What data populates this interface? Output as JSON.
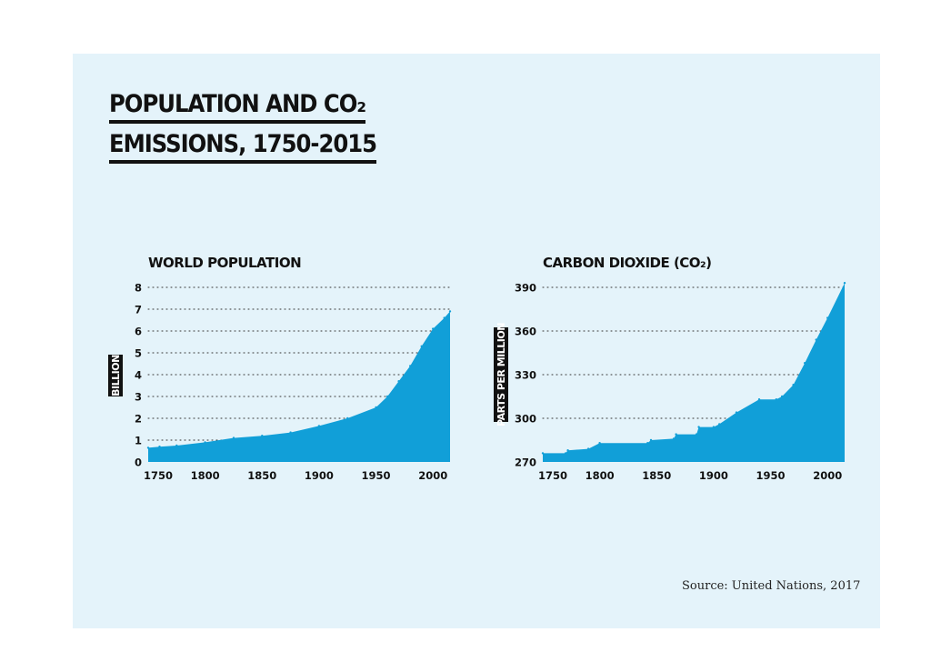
{
  "figure": {
    "title_line1": "POPULATION AND CO₂",
    "title_line2": "EMISSIONS, 1750-2015",
    "source": "Source: United Nations, 2017"
  },
  "colors": {
    "fill": "#119fd8",
    "background": "#e4f3fa",
    "text": "#111111"
  },
  "chart_data": [
    {
      "type": "area",
      "title": "WORLD POPULATION",
      "xlabel": "",
      "ylabel": "BILLION",
      "xlim": [
        1750,
        2015
      ],
      "ylim": [
        0,
        8
      ],
      "xticks": [
        1750,
        1800,
        1850,
        1900,
        1950,
        2000
      ],
      "xtick_labels": [
        "1750",
        "1800",
        "1850",
        "1900",
        "1950",
        "2000"
      ],
      "yticks": [
        0,
        1,
        2,
        3,
        4,
        5,
        6,
        7,
        8
      ],
      "ytick_labels": [
        "0",
        "1",
        "2",
        "3",
        "4",
        "5",
        "6",
        "7",
        "8"
      ],
      "grid": true,
      "x": [
        1750,
        1760,
        1775,
        1800,
        1825,
        1850,
        1875,
        1900,
        1925,
        1950,
        1960,
        1970,
        1980,
        1990,
        2000,
        2010,
        2015
      ],
      "values": [
        0.65,
        0.7,
        0.75,
        0.9,
        1.1,
        1.2,
        1.35,
        1.65,
        2.0,
        2.5,
        3.0,
        3.7,
        4.4,
        5.3,
        6.1,
        6.6,
        6.9
      ]
    },
    {
      "type": "area",
      "title": "CARBON DIOXIDE (CO₂)",
      "xlabel": "",
      "ylabel": "PARTS PER MILLION",
      "xlim": [
        1750,
        2015
      ],
      "ylim": [
        270,
        390
      ],
      "xticks": [
        1750,
        1800,
        1850,
        1900,
        1950,
        2000
      ],
      "xtick_labels": [
        "1750",
        "1800",
        "1850",
        "1900",
        "1950",
        "2000"
      ],
      "yticks": [
        270,
        300,
        330,
        360,
        390
      ],
      "ytick_labels": [
        "270",
        "300",
        "330",
        "360",
        "390"
      ],
      "grid": true,
      "x": [
        1750,
        1770,
        1772,
        1790,
        1800,
        1842,
        1845,
        1865,
        1867,
        1885,
        1887,
        1900,
        1905,
        1920,
        1940,
        1955,
        1960,
        1970,
        1980,
        1990,
        2000,
        2015
      ],
      "values": [
        276,
        276,
        278,
        279,
        283,
        283,
        285,
        286,
        289,
        289,
        294,
        294,
        296,
        304,
        313,
        313,
        315,
        323,
        338,
        354,
        369,
        393
      ]
    }
  ]
}
